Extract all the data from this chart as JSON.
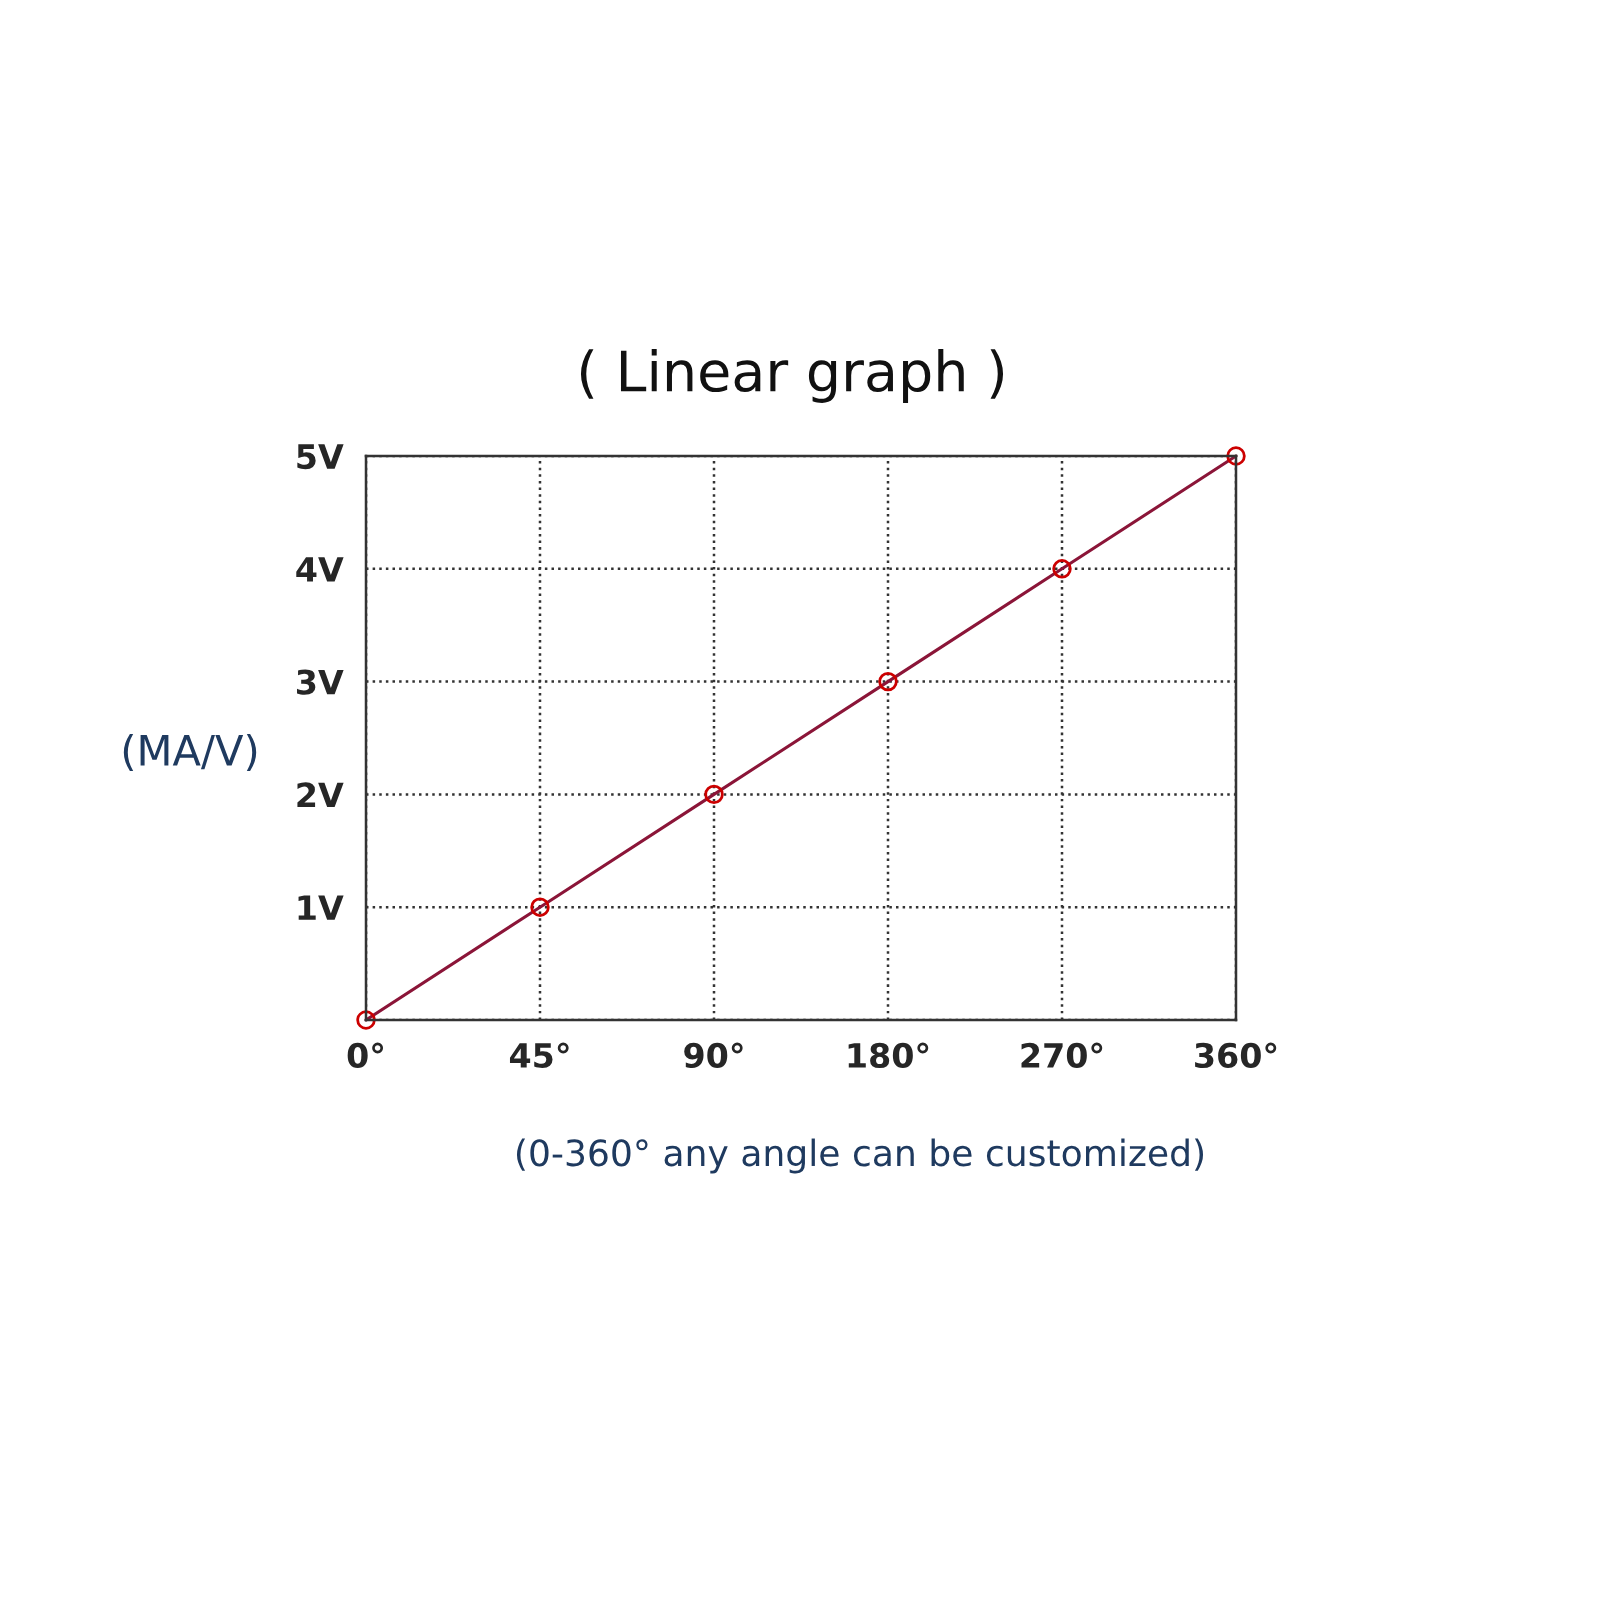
{
  "chart_data": {
    "type": "line",
    "title": "( Linear graph )",
    "ylabel": "(MA/V)",
    "xlabel": "(0-360° any angle can be customized)",
    "categories": [
      "0°",
      "45°",
      "90°",
      "180°",
      "270°",
      "360°"
    ],
    "series": [
      {
        "color": "#8b1538",
        "values": [
          0,
          1,
          2,
          3,
          4,
          5
        ]
      }
    ],
    "ylim": [
      0,
      5
    ],
    "yticks": [
      {
        "value": 0,
        "label": null
      },
      {
        "value": 1,
        "label": "1V"
      },
      {
        "value": 2,
        "label": "2V"
      },
      {
        "value": 3,
        "label": "3V"
      },
      {
        "value": 4,
        "label": "4V"
      },
      {
        "value": 5,
        "label": "5V"
      }
    ],
    "grid": true,
    "marker": "circle",
    "line_style": "solid"
  }
}
